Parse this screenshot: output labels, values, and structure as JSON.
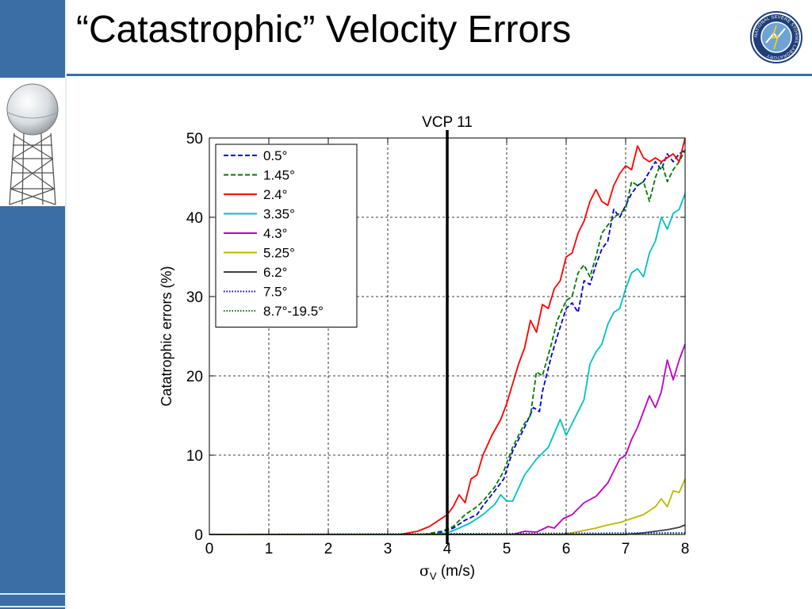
{
  "slide": {
    "title": "“Catastrophic” Velocity Errors"
  },
  "logo": {
    "icon": "national-severe-storms-laboratory-seal-icon",
    "text": "NATIONAL SEVERE STORMS LABORATORY"
  },
  "colors": {
    "sidebar": "#3a6ea5",
    "accent_rule": "#3a6ea5"
  },
  "chart_data": {
    "type": "line",
    "title": "VCP 11",
    "xlabel": "σV (m/s)",
    "xlabel_main": "σ",
    "xlabel_sub": "V",
    "xlabel_rest": " (m/s)",
    "ylabel": "Catatrophic errors (%)",
    "xlim": [
      0,
      8
    ],
    "ylim": [
      0,
      50
    ],
    "xticks": [
      "0",
      "1",
      "2",
      "3",
      "4",
      "5",
      "6",
      "7",
      "8"
    ],
    "yticks": [
      "0",
      "10",
      "20",
      "30",
      "40",
      "50"
    ],
    "grid": true,
    "legend_position": "top-left",
    "reference_line": {
      "x": 4,
      "color": "#000000"
    },
    "series": [
      {
        "name": "0.5°",
        "color": "#0000cc",
        "dash": "dashed",
        "points": [
          [
            0,
            0
          ],
          [
            3.6,
            0
          ],
          [
            3.9,
            0.3
          ],
          [
            4.1,
            0.8
          ],
          [
            4.3,
            1.8
          ],
          [
            4.5,
            2.5
          ],
          [
            4.6,
            3.6
          ],
          [
            4.8,
            5.5
          ],
          [
            4.95,
            7
          ],
          [
            5.1,
            10.5
          ],
          [
            5.3,
            13.5
          ],
          [
            5.45,
            16
          ],
          [
            5.55,
            15.5
          ],
          [
            5.6,
            18
          ],
          [
            5.75,
            22.5
          ],
          [
            5.85,
            25
          ],
          [
            6.0,
            28.5
          ],
          [
            6.1,
            29.2
          ],
          [
            6.2,
            28
          ],
          [
            6.3,
            32
          ],
          [
            6.4,
            31.5
          ],
          [
            6.5,
            34
          ],
          [
            6.6,
            36
          ],
          [
            6.7,
            37
          ],
          [
            6.8,
            41
          ],
          [
            6.9,
            40
          ],
          [
            7.0,
            41.5
          ],
          [
            7.1,
            43
          ],
          [
            7.2,
            44
          ],
          [
            7.3,
            44.5
          ],
          [
            7.5,
            47
          ],
          [
            7.6,
            46
          ],
          [
            7.7,
            48
          ],
          [
            7.8,
            47
          ],
          [
            7.9,
            48
          ],
          [
            8.0,
            48.5
          ]
        ]
      },
      {
        "name": "1.45°",
        "color": "#007a00",
        "dash": "dashed",
        "points": [
          [
            0,
            0
          ],
          [
            3.6,
            0
          ],
          [
            3.9,
            0.4
          ],
          [
            4.1,
            1
          ],
          [
            4.3,
            2.5
          ],
          [
            4.5,
            3.5
          ],
          [
            4.6,
            4.2
          ],
          [
            4.8,
            6
          ],
          [
            4.95,
            8
          ],
          [
            5.1,
            11
          ],
          [
            5.3,
            14
          ],
          [
            5.4,
            15
          ],
          [
            5.5,
            20.5
          ],
          [
            5.6,
            20
          ],
          [
            5.75,
            24
          ],
          [
            5.85,
            27
          ],
          [
            6.0,
            29.5
          ],
          [
            6.1,
            30
          ],
          [
            6.2,
            33
          ],
          [
            6.3,
            34
          ],
          [
            6.4,
            32.5
          ],
          [
            6.5,
            35
          ],
          [
            6.6,
            38
          ],
          [
            6.7,
            39
          ],
          [
            6.8,
            40
          ],
          [
            6.9,
            40.5
          ],
          [
            7.0,
            41
          ],
          [
            7.1,
            44.5
          ],
          [
            7.2,
            44
          ],
          [
            7.3,
            44.5
          ],
          [
            7.4,
            42
          ],
          [
            7.5,
            45
          ],
          [
            7.6,
            47
          ],
          [
            7.7,
            44.5
          ],
          [
            7.8,
            46
          ],
          [
            7.9,
            47
          ],
          [
            8.0,
            48.5
          ]
        ]
      },
      {
        "name": "2.4°",
        "color": "#ff0000",
        "dash": "solid",
        "points": [
          [
            0,
            0
          ],
          [
            3.2,
            0
          ],
          [
            3.5,
            0.4
          ],
          [
            3.7,
            1
          ],
          [
            3.9,
            2
          ],
          [
            4.0,
            2.5
          ],
          [
            4.1,
            3.5
          ],
          [
            4.2,
            5
          ],
          [
            4.3,
            4
          ],
          [
            4.4,
            7
          ],
          [
            4.5,
            7.5
          ],
          [
            4.6,
            10
          ],
          [
            4.75,
            12.5
          ],
          [
            4.9,
            14.5
          ],
          [
            5.0,
            16.5
          ],
          [
            5.1,
            19
          ],
          [
            5.2,
            21.5
          ],
          [
            5.3,
            23.5
          ],
          [
            5.4,
            27
          ],
          [
            5.5,
            25.5
          ],
          [
            5.6,
            29
          ],
          [
            5.7,
            28.5
          ],
          [
            5.8,
            31
          ],
          [
            5.9,
            32
          ],
          [
            6.0,
            35
          ],
          [
            6.1,
            35.5
          ],
          [
            6.2,
            38
          ],
          [
            6.3,
            39.5
          ],
          [
            6.4,
            42
          ],
          [
            6.5,
            43.5
          ],
          [
            6.6,
            42
          ],
          [
            6.7,
            41.5
          ],
          [
            6.8,
            44
          ],
          [
            6.9,
            45.5
          ],
          [
            7.0,
            46.5
          ],
          [
            7.1,
            46
          ],
          [
            7.2,
            49
          ],
          [
            7.3,
            47.5
          ],
          [
            7.4,
            47
          ],
          [
            7.5,
            47.5
          ],
          [
            7.6,
            47
          ],
          [
            7.7,
            47.5
          ],
          [
            7.8,
            48
          ],
          [
            7.9,
            47
          ],
          [
            8.0,
            50
          ]
        ]
      },
      {
        "name": "3.35°",
        "color": "#00c0c0",
        "dash": "solid",
        "points": [
          [
            0,
            0
          ],
          [
            3.8,
            0
          ],
          [
            4.0,
            0.2
          ],
          [
            4.2,
            0.8
          ],
          [
            4.4,
            1.5
          ],
          [
            4.6,
            2.5
          ],
          [
            4.8,
            3.8
          ],
          [
            4.9,
            5
          ],
          [
            5.0,
            4.2
          ],
          [
            5.1,
            4.2
          ],
          [
            5.3,
            7.5
          ],
          [
            5.5,
            9.5
          ],
          [
            5.7,
            11
          ],
          [
            5.9,
            14.5
          ],
          [
            6.0,
            12.5
          ],
          [
            6.1,
            14
          ],
          [
            6.3,
            17
          ],
          [
            6.4,
            21.5
          ],
          [
            6.5,
            23
          ],
          [
            6.6,
            24
          ],
          [
            6.7,
            26.5
          ],
          [
            6.8,
            28
          ],
          [
            6.9,
            28.5
          ],
          [
            7.0,
            31
          ],
          [
            7.1,
            33
          ],
          [
            7.2,
            33.5
          ],
          [
            7.3,
            32.5
          ],
          [
            7.4,
            35.5
          ],
          [
            7.5,
            37
          ],
          [
            7.6,
            40
          ],
          [
            7.7,
            38.5
          ],
          [
            7.8,
            40.5
          ],
          [
            7.9,
            41
          ],
          [
            8.0,
            43
          ]
        ]
      },
      {
        "name": "4.3°",
        "color": "#c000c0",
        "dash": "solid",
        "points": [
          [
            0,
            0
          ],
          [
            5.1,
            0
          ],
          [
            5.3,
            0.4
          ],
          [
            5.5,
            0.3
          ],
          [
            5.7,
            1
          ],
          [
            5.8,
            0.8
          ],
          [
            5.95,
            2
          ],
          [
            6.1,
            2.5
          ],
          [
            6.3,
            4
          ],
          [
            6.5,
            4.8
          ],
          [
            6.7,
            6.5
          ],
          [
            6.9,
            9.5
          ],
          [
            7.0,
            10
          ],
          [
            7.1,
            12
          ],
          [
            7.2,
            13.5
          ],
          [
            7.3,
            15.5
          ],
          [
            7.4,
            17.5
          ],
          [
            7.5,
            16
          ],
          [
            7.6,
            18
          ],
          [
            7.7,
            22
          ],
          [
            7.8,
            19.5
          ],
          [
            7.9,
            22
          ],
          [
            8.0,
            24
          ]
        ]
      },
      {
        "name": "5.25°",
        "color": "#b8b800",
        "dash": "solid",
        "points": [
          [
            0,
            0
          ],
          [
            5.9,
            0
          ],
          [
            6.1,
            0.2
          ],
          [
            6.3,
            0.5
          ],
          [
            6.5,
            0.8
          ],
          [
            6.7,
            1.2
          ],
          [
            6.9,
            1.5
          ],
          [
            7.1,
            2
          ],
          [
            7.3,
            2.5
          ],
          [
            7.5,
            3.5
          ],
          [
            7.6,
            4.5
          ],
          [
            7.7,
            3.5
          ],
          [
            7.8,
            5.5
          ],
          [
            7.9,
            5.3
          ],
          [
            8.0,
            7
          ]
        ]
      },
      {
        "name": "6.2°",
        "color": "#404040",
        "dash": "solid",
        "points": [
          [
            0,
            0
          ],
          [
            7.0,
            0
          ],
          [
            7.3,
            0.2
          ],
          [
            7.5,
            0.4
          ],
          [
            7.7,
            0.6
          ],
          [
            7.9,
            0.9
          ],
          [
            8.0,
            1.2
          ]
        ]
      },
      {
        "name": "7.5°",
        "color": "#0000cc",
        "dash": "dotted",
        "points": [
          [
            0,
            0
          ],
          [
            8.0,
            0.2
          ]
        ]
      },
      {
        "name": "8.7°-19.5°",
        "color": "#007a00",
        "dash": "dotted",
        "points": [
          [
            0,
            0
          ],
          [
            8.0,
            0.1
          ]
        ]
      }
    ]
  }
}
